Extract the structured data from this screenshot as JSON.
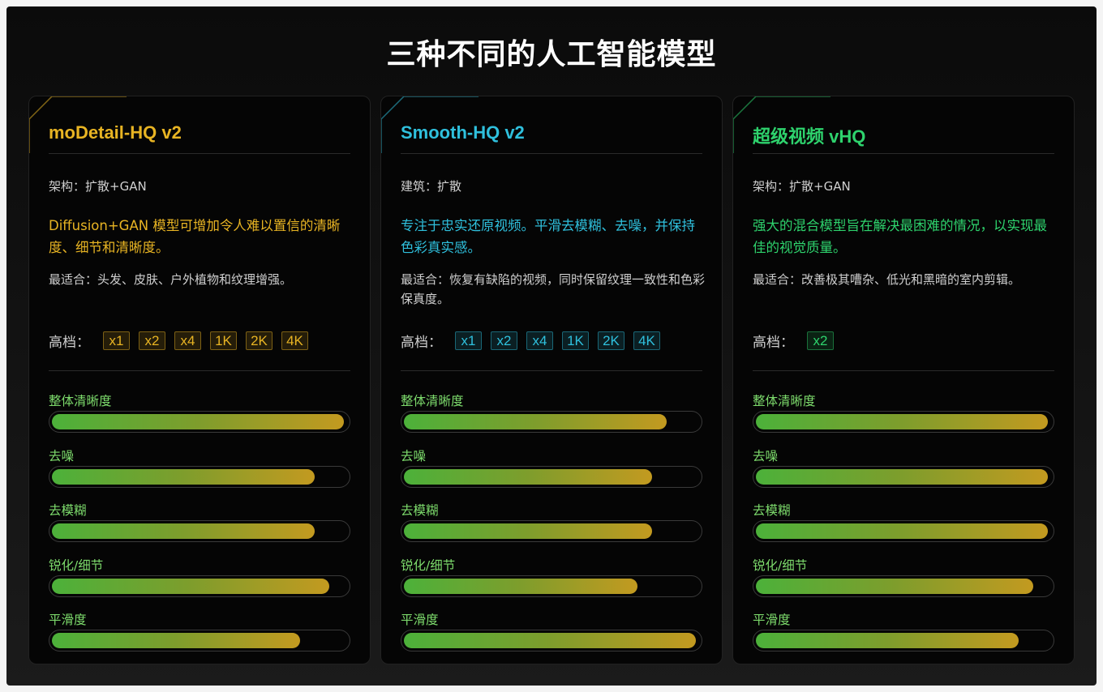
{
  "title": "三种不同的人工智能模型",
  "cards": [
    {
      "title": "moDetail-HQ v2",
      "accent": "#e8b423",
      "arch": "架构：扩散+GAN",
      "desc": "Diffusion+GAN 模型可增加令人难以置信的清晰度、细节和清晰度。",
      "best": "最适合：头发、皮肤、户外植物和纹理增强。",
      "upscale_label": "高档：",
      "chips": [
        "x1",
        "x2",
        "x4",
        "1K",
        "2K",
        "4K"
      ],
      "metrics": [
        {
          "label": "整体清晰度",
          "value": 0.99
        },
        {
          "label": "去噪",
          "value": 0.89
        },
        {
          "label": "去模糊",
          "value": 0.89
        },
        {
          "label": "锐化/细节",
          "value": 0.94
        },
        {
          "label": "平滑度",
          "value": 0.84
        }
      ]
    },
    {
      "title": "Smooth-HQ v2",
      "accent": "#2fc0dd",
      "arch": "建筑：扩散",
      "desc": "专注于忠实还原视频。平滑去模糊、去噪，并保持色彩真实感。",
      "best": "最适合：恢复有缺陷的视频，同时保留纹理一致性和色彩保真度。",
      "upscale_label": "高档：",
      "chips": [
        "x1",
        "x2",
        "x4",
        "1K",
        "2K",
        "4K"
      ],
      "metrics": [
        {
          "label": "整体清晰度",
          "value": 0.89
        },
        {
          "label": "去噪",
          "value": 0.84
        },
        {
          "label": "去模糊",
          "value": 0.84
        },
        {
          "label": "锐化/细节",
          "value": 0.79
        },
        {
          "label": "平滑度",
          "value": 0.99
        }
      ]
    },
    {
      "title": "超级视频 vHQ",
      "accent": "#2ed36d",
      "arch": "架构：扩散+GAN",
      "desc": "强大的混合模型旨在解决最困难的情况，以实现最佳的视觉质量。",
      "best": "最适合：改善极其嘈杂、低光和黑暗的室内剪辑。",
      "upscale_label": "高档：",
      "chips": [
        "x2"
      ],
      "metrics": [
        {
          "label": "整体清晰度",
          "value": 0.99
        },
        {
          "label": "去噪",
          "value": 0.99
        },
        {
          "label": "去模糊",
          "value": 0.99
        },
        {
          "label": "锐化/细节",
          "value": 0.94
        },
        {
          "label": "平滑度",
          "value": 0.89
        }
      ]
    }
  ]
}
